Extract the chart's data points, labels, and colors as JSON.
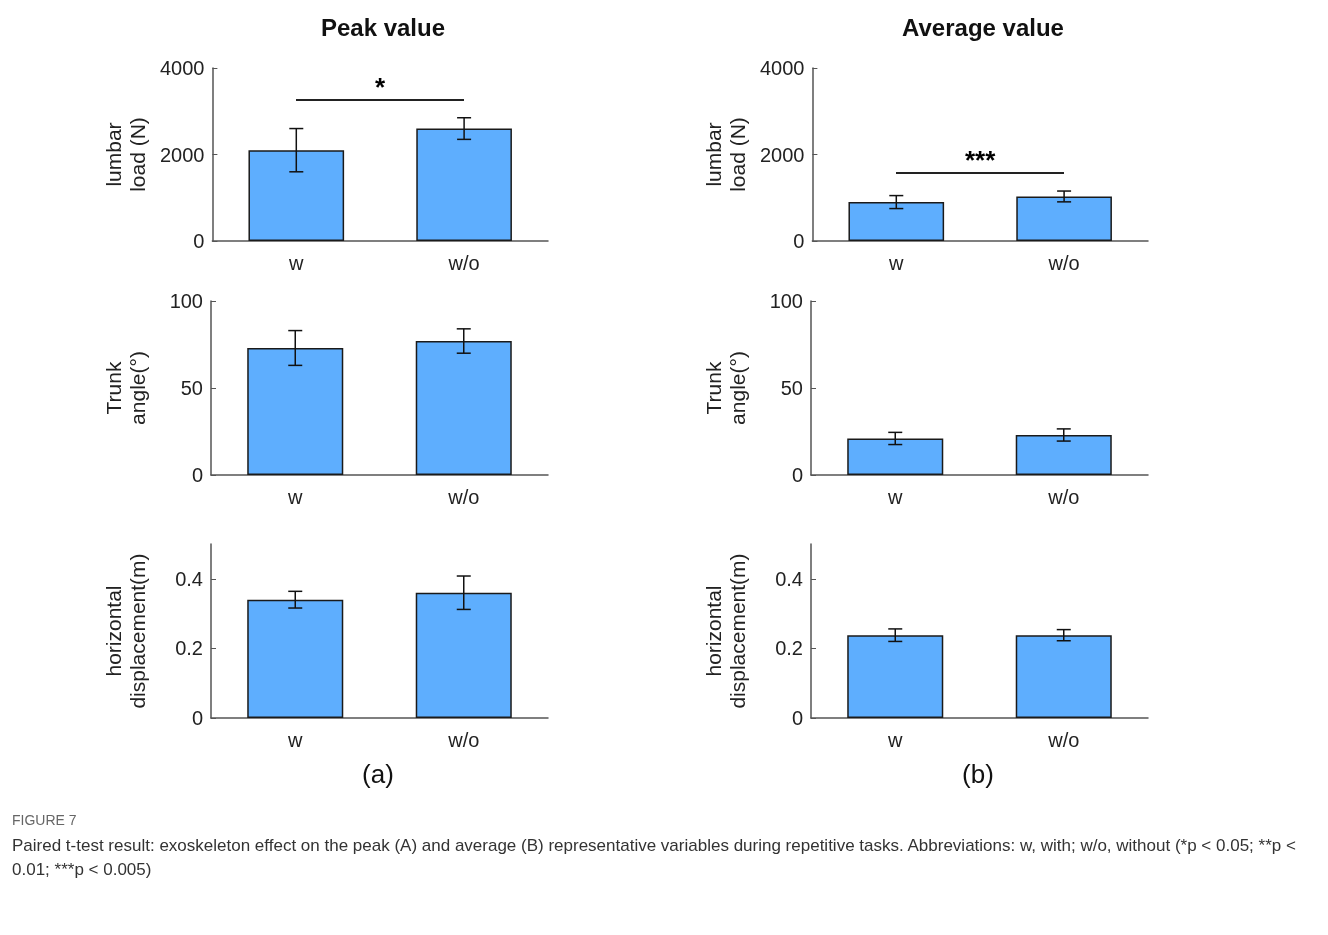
{
  "chart_data": [
    {
      "type": "bar",
      "title": "Peak value",
      "ylabel": "lumbar load (N)",
      "categories": [
        "w",
        "w/o"
      ],
      "values": [
        2100,
        2600
      ],
      "errors": [
        500,
        250
      ],
      "color": "#5eaefe",
      "ylim": [
        0,
        4000
      ],
      "yticks": [
        0,
        2000,
        4000
      ],
      "annotations": [
        "*"
      ]
    },
    {
      "type": "bar",
      "title": "Average value",
      "ylabel": "lumbar load (N)",
      "categories": [
        "w",
        "w/o"
      ],
      "values": [
        900,
        1030
      ],
      "errors": [
        150,
        125
      ],
      "color": "#5eaefe",
      "ylim": [
        0,
        4000
      ],
      "yticks": [
        0,
        2000,
        4000
      ],
      "annotations": [
        "***"
      ]
    },
    {
      "type": "bar",
      "ylabel": "Trunk angle(°)",
      "categories": [
        "w",
        "w/o"
      ],
      "values": [
        73,
        77
      ],
      "errors": [
        10,
        7
      ],
      "color": "#5eaefe",
      "ylim": [
        0,
        100
      ],
      "yticks": [
        0,
        50,
        100
      ]
    },
    {
      "type": "bar",
      "ylabel": "Trunk angle(°)",
      "categories": [
        "w",
        "w/o"
      ],
      "values": [
        21,
        23
      ],
      "errors": [
        3.5,
        3.5
      ],
      "color": "#5eaefe",
      "ylim": [
        0,
        100
      ],
      "yticks": [
        0,
        50,
        100
      ]
    },
    {
      "type": "bar",
      "ylabel": "horizontal displacement(m)",
      "categories": [
        "w",
        "w/o"
      ],
      "values": [
        0.34,
        0.36
      ],
      "errors": [
        0.024,
        0.048
      ],
      "color": "#5eaefe",
      "ylim": [
        0,
        0.5
      ],
      "yticks": [
        0,
        0.2,
        0.4
      ],
      "annotations": [
        "(a)"
      ]
    },
    {
      "type": "bar",
      "ylabel": "horizontal displacement(m)",
      "categories": [
        "w",
        "w/o"
      ],
      "values": [
        0.238,
        0.238
      ],
      "errors": [
        0.018,
        0.016
      ],
      "color": "#5eaefe",
      "ylim": [
        0,
        0.5
      ],
      "yticks": [
        0,
        0.2,
        0.4
      ],
      "annotations": [
        "(b)",
        "FIGURE 7",
        "Paired t-test result: exoskeleton effect on the peak (A) and average (B) representative variables during repetitive tasks. Abbreviations: w, with; w/o, without (*p < 0.05; **p < 0.01; ***p < 0.005)"
      ]
    }
  ]
}
